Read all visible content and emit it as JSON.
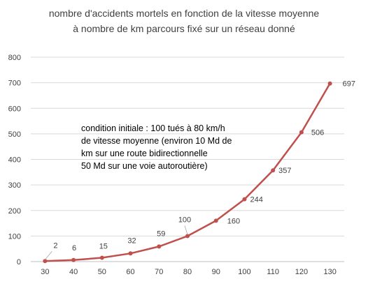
{
  "chart_data": {
    "type": "line",
    "title": [
      "nombre  d'accidents mortels en fonction de la vitesse moyenne",
      "à nombre  de km  parcours fixé sur un réseau donné"
    ],
    "x": [
      30,
      40,
      50,
      60,
      70,
      80,
      90,
      100,
      110,
      120,
      130
    ],
    "series": [
      {
        "values": [
          2,
          6,
          15,
          32,
          59,
          100,
          160,
          244,
          357,
          506,
          697
        ],
        "color": "#c0504d"
      }
    ],
    "data_labels": [
      "2",
      "6",
      "15",
      "32",
      "59",
      "100",
      "160",
      "244",
      "357",
      "506",
      "697"
    ],
    "x_ticks": [
      "30",
      "40",
      "50",
      "60",
      "70",
      "80",
      "90",
      "100",
      "110",
      "120",
      "130"
    ],
    "y_ticks": [
      "0",
      "100",
      "200",
      "300",
      "400",
      "500",
      "600",
      "700",
      "800"
    ],
    "ylim": [
      0,
      800
    ],
    "xlabel": "",
    "ylabel": "",
    "grid": "horizontal",
    "legend": "none",
    "annotation": [
      "condition initiale : 100 tués à 80 km/h",
      "de vitesse moyenne (environ 10 Md de",
      "km sur une route bidirectionnelle",
      "50 Md sur une voie autoroutière)"
    ],
    "gridline_color": "#d9d9d9",
    "text_color": "#404040"
  }
}
